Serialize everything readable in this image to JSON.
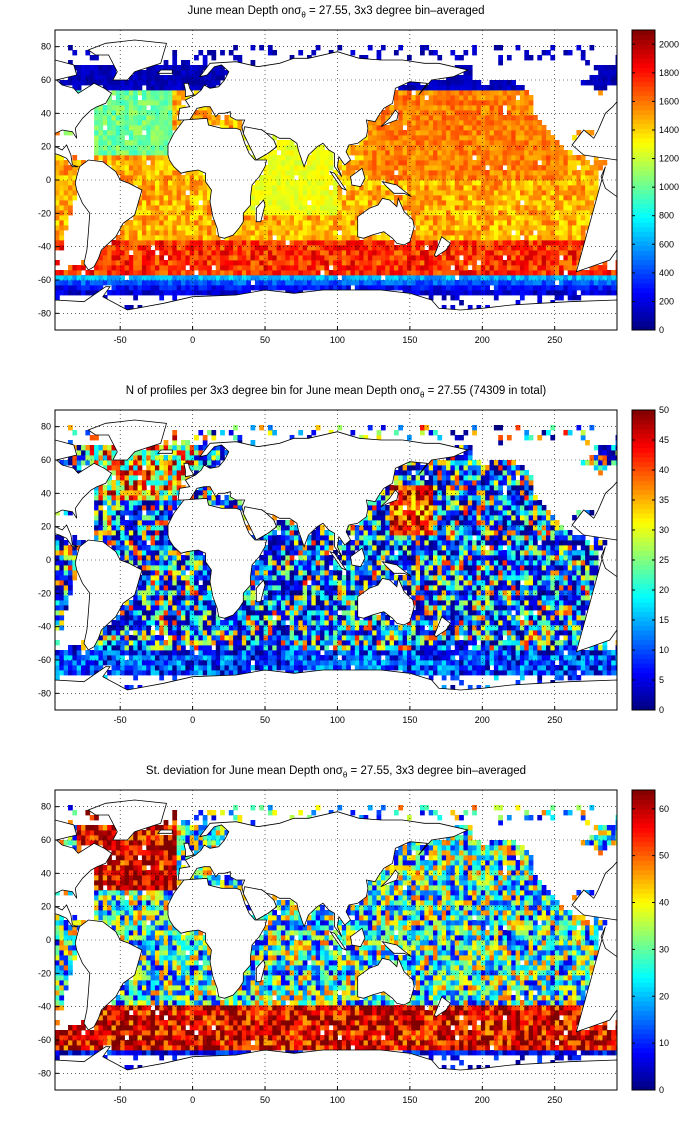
{
  "panels": [
    {
      "id": "depth",
      "title_pre": "June mean Depth on",
      "title_symbol": "σ",
      "title_sub": "θ",
      "title_post": " = 27.55, 3x3 degree bin–averaged",
      "colorbar_ticks": [
        0,
        200,
        400,
        600,
        800,
        1000,
        1200,
        1400,
        1600,
        1800,
        2000
      ],
      "colorbar_range": [
        0,
        2100
      ]
    },
    {
      "id": "nprofiles",
      "title_pre": "N of profiles per 3x3 degree bin for June mean Depth on",
      "title_symbol": "σ",
      "title_sub": "θ",
      "title_post": " = 27.55 (74309 in total)",
      "colorbar_ticks": [
        0,
        5,
        10,
        15,
        20,
        25,
        30,
        35,
        40,
        45,
        50
      ],
      "colorbar_range": [
        0,
        50
      ]
    },
    {
      "id": "stdev",
      "title_pre": "St. deviation for June mean Depth on",
      "title_symbol": "σ",
      "title_sub": "θ",
      "title_post": " = 27.55, 3x3 degree bin–averaged",
      "colorbar_ticks": [
        0,
        10,
        20,
        30,
        40,
        50,
        60
      ],
      "colorbar_range": [
        0,
        64
      ]
    }
  ],
  "axes": {
    "x_ticks": [
      -50,
      0,
      50,
      100,
      150,
      200,
      250
    ],
    "y_ticks": [
      -80,
      -60,
      -40,
      -20,
      0,
      20,
      40,
      60,
      80
    ],
    "xlim": [
      -95,
      293
    ],
    "ylim": [
      -90,
      90
    ],
    "grid": "dotted"
  },
  "colormap": "jet"
}
